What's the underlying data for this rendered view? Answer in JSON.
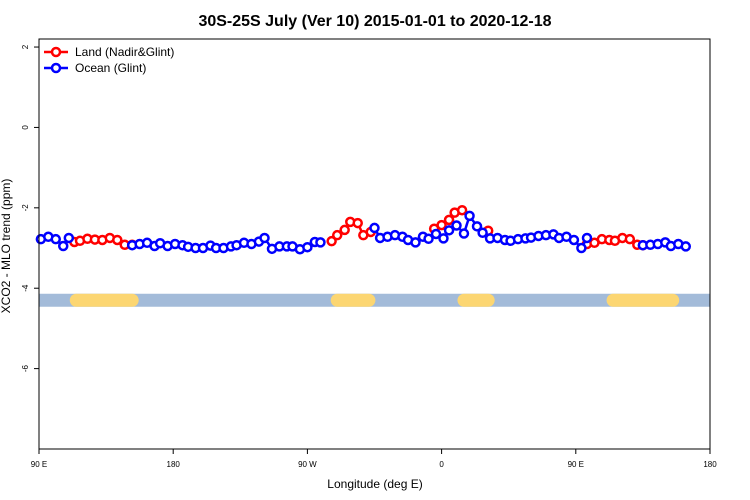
{
  "chart_data": {
    "type": "line",
    "title": "30S-25S July (Ver 10)   2015-01-01 to 2020-12-18",
    "xlabel": "Longitude (deg E)",
    "ylabel": "XCO2 - MLO trend (ppm)",
    "xlim": [
      90,
      450
    ],
    "ylim": [
      -8,
      2.2
    ],
    "x_ticks": [
      90,
      162,
      234,
      306,
      378,
      450
    ],
    "x_tick_labels": [
      "90 E",
      "180",
      "90 W",
      "0",
      "90 E",
      "180"
    ],
    "y_ticks": [
      -6,
      -4,
      -2,
      0,
      2
    ],
    "y_tick_labels": [
      "-6",
      "-4",
      "-2",
      "0",
      "2"
    ],
    "legend_position": "top-left",
    "colors": {
      "land": "#ff0000",
      "ocean": "#0000ff",
      "ocean_band": "#a3bbd9",
      "land_band": "#fcd672"
    },
    "series": [
      {
        "name": "Land (Nadir&Glint)",
        "color": "#ff0000",
        "points": [
          [
            109,
            -2.85
          ],
          [
            112,
            -2.82
          ],
          [
            116,
            -2.77
          ],
          [
            120,
            -2.79
          ],
          [
            124,
            -2.8
          ],
          [
            128,
            -2.75
          ],
          [
            132,
            -2.8
          ],
          [
            136,
            -2.92
          ],
          [
            140,
            -2.92
          ],
          [
            247,
            -2.83
          ],
          [
            250,
            -2.68
          ],
          [
            254,
            -2.55
          ],
          [
            257,
            -2.35
          ],
          [
            261,
            -2.38
          ],
          [
            264,
            -2.68
          ],
          [
            268,
            -2.6
          ],
          [
            302,
            -2.52
          ],
          [
            306,
            -2.43
          ],
          [
            310,
            -2.3
          ],
          [
            313,
            -2.12
          ],
          [
            317,
            -2.06
          ],
          [
            331,
            -2.57
          ],
          [
            384,
            -2.9
          ],
          [
            388,
            -2.87
          ],
          [
            392,
            -2.78
          ],
          [
            396,
            -2.8
          ],
          [
            399,
            -2.82
          ],
          [
            403,
            -2.75
          ],
          [
            407,
            -2.78
          ],
          [
            411,
            -2.92
          ],
          [
            414,
            -2.93
          ]
        ]
      },
      {
        "name": "Ocean (Glint)",
        "color": "#0000ff",
        "points": [
          [
            91,
            -2.78
          ],
          [
            95,
            -2.72
          ],
          [
            99,
            -2.78
          ],
          [
            103,
            -2.95
          ],
          [
            106,
            -2.75
          ],
          [
            140,
            -2.93
          ],
          [
            144,
            -2.9
          ],
          [
            148,
            -2.87
          ],
          [
            152,
            -2.95
          ],
          [
            155,
            -2.88
          ],
          [
            159,
            -2.95
          ],
          [
            163,
            -2.9
          ],
          [
            167,
            -2.93
          ],
          [
            170,
            -2.97
          ],
          [
            174,
            -3.0
          ],
          [
            178,
            -3.0
          ],
          [
            182,
            -2.94
          ],
          [
            185,
            -3.0
          ],
          [
            189,
            -3.0
          ],
          [
            193,
            -2.96
          ],
          [
            196,
            -2.93
          ],
          [
            200,
            -2.87
          ],
          [
            204,
            -2.9
          ],
          [
            208,
            -2.84
          ],
          [
            211,
            -2.75
          ],
          [
            215,
            -3.02
          ],
          [
            219,
            -2.96
          ],
          [
            223,
            -2.96
          ],
          [
            226,
            -2.96
          ],
          [
            230,
            -3.03
          ],
          [
            234,
            -2.98
          ],
          [
            238,
            -2.85
          ],
          [
            241,
            -2.86
          ],
          [
            270,
            -2.5
          ],
          [
            273,
            -2.75
          ],
          [
            277,
            -2.72
          ],
          [
            281,
            -2.68
          ],
          [
            285,
            -2.72
          ],
          [
            288,
            -2.8
          ],
          [
            292,
            -2.86
          ],
          [
            296,
            -2.72
          ],
          [
            299,
            -2.77
          ],
          [
            303,
            -2.65
          ],
          [
            307,
            -2.76
          ],
          [
            310,
            -2.56
          ],
          [
            314,
            -2.44
          ],
          [
            318,
            -2.64
          ],
          [
            321,
            -2.2
          ],
          [
            325,
            -2.46
          ],
          [
            328,
            -2.62
          ],
          [
            332,
            -2.76
          ],
          [
            336,
            -2.75
          ],
          [
            340,
            -2.8
          ],
          [
            343,
            -2.82
          ],
          [
            347,
            -2.78
          ],
          [
            351,
            -2.76
          ],
          [
            354,
            -2.74
          ],
          [
            358,
            -2.7
          ],
          [
            362,
            -2.68
          ],
          [
            366,
            -2.66
          ],
          [
            369,
            -2.75
          ],
          [
            373,
            -2.72
          ],
          [
            377,
            -2.8
          ],
          [
            381,
            -3.0
          ],
          [
            384,
            -2.75
          ],
          [
            414,
            -2.93
          ],
          [
            418,
            -2.92
          ],
          [
            422,
            -2.9
          ],
          [
            426,
            -2.86
          ],
          [
            429,
            -2.95
          ],
          [
            433,
            -2.9
          ],
          [
            437,
            -2.96
          ]
        ]
      }
    ],
    "surface_band": {
      "y": -4.3,
      "land_segments": [
        [
          110,
          140
        ],
        [
          250,
          267
        ],
        [
          318,
          331
        ],
        [
          398,
          430
        ]
      ]
    }
  }
}
